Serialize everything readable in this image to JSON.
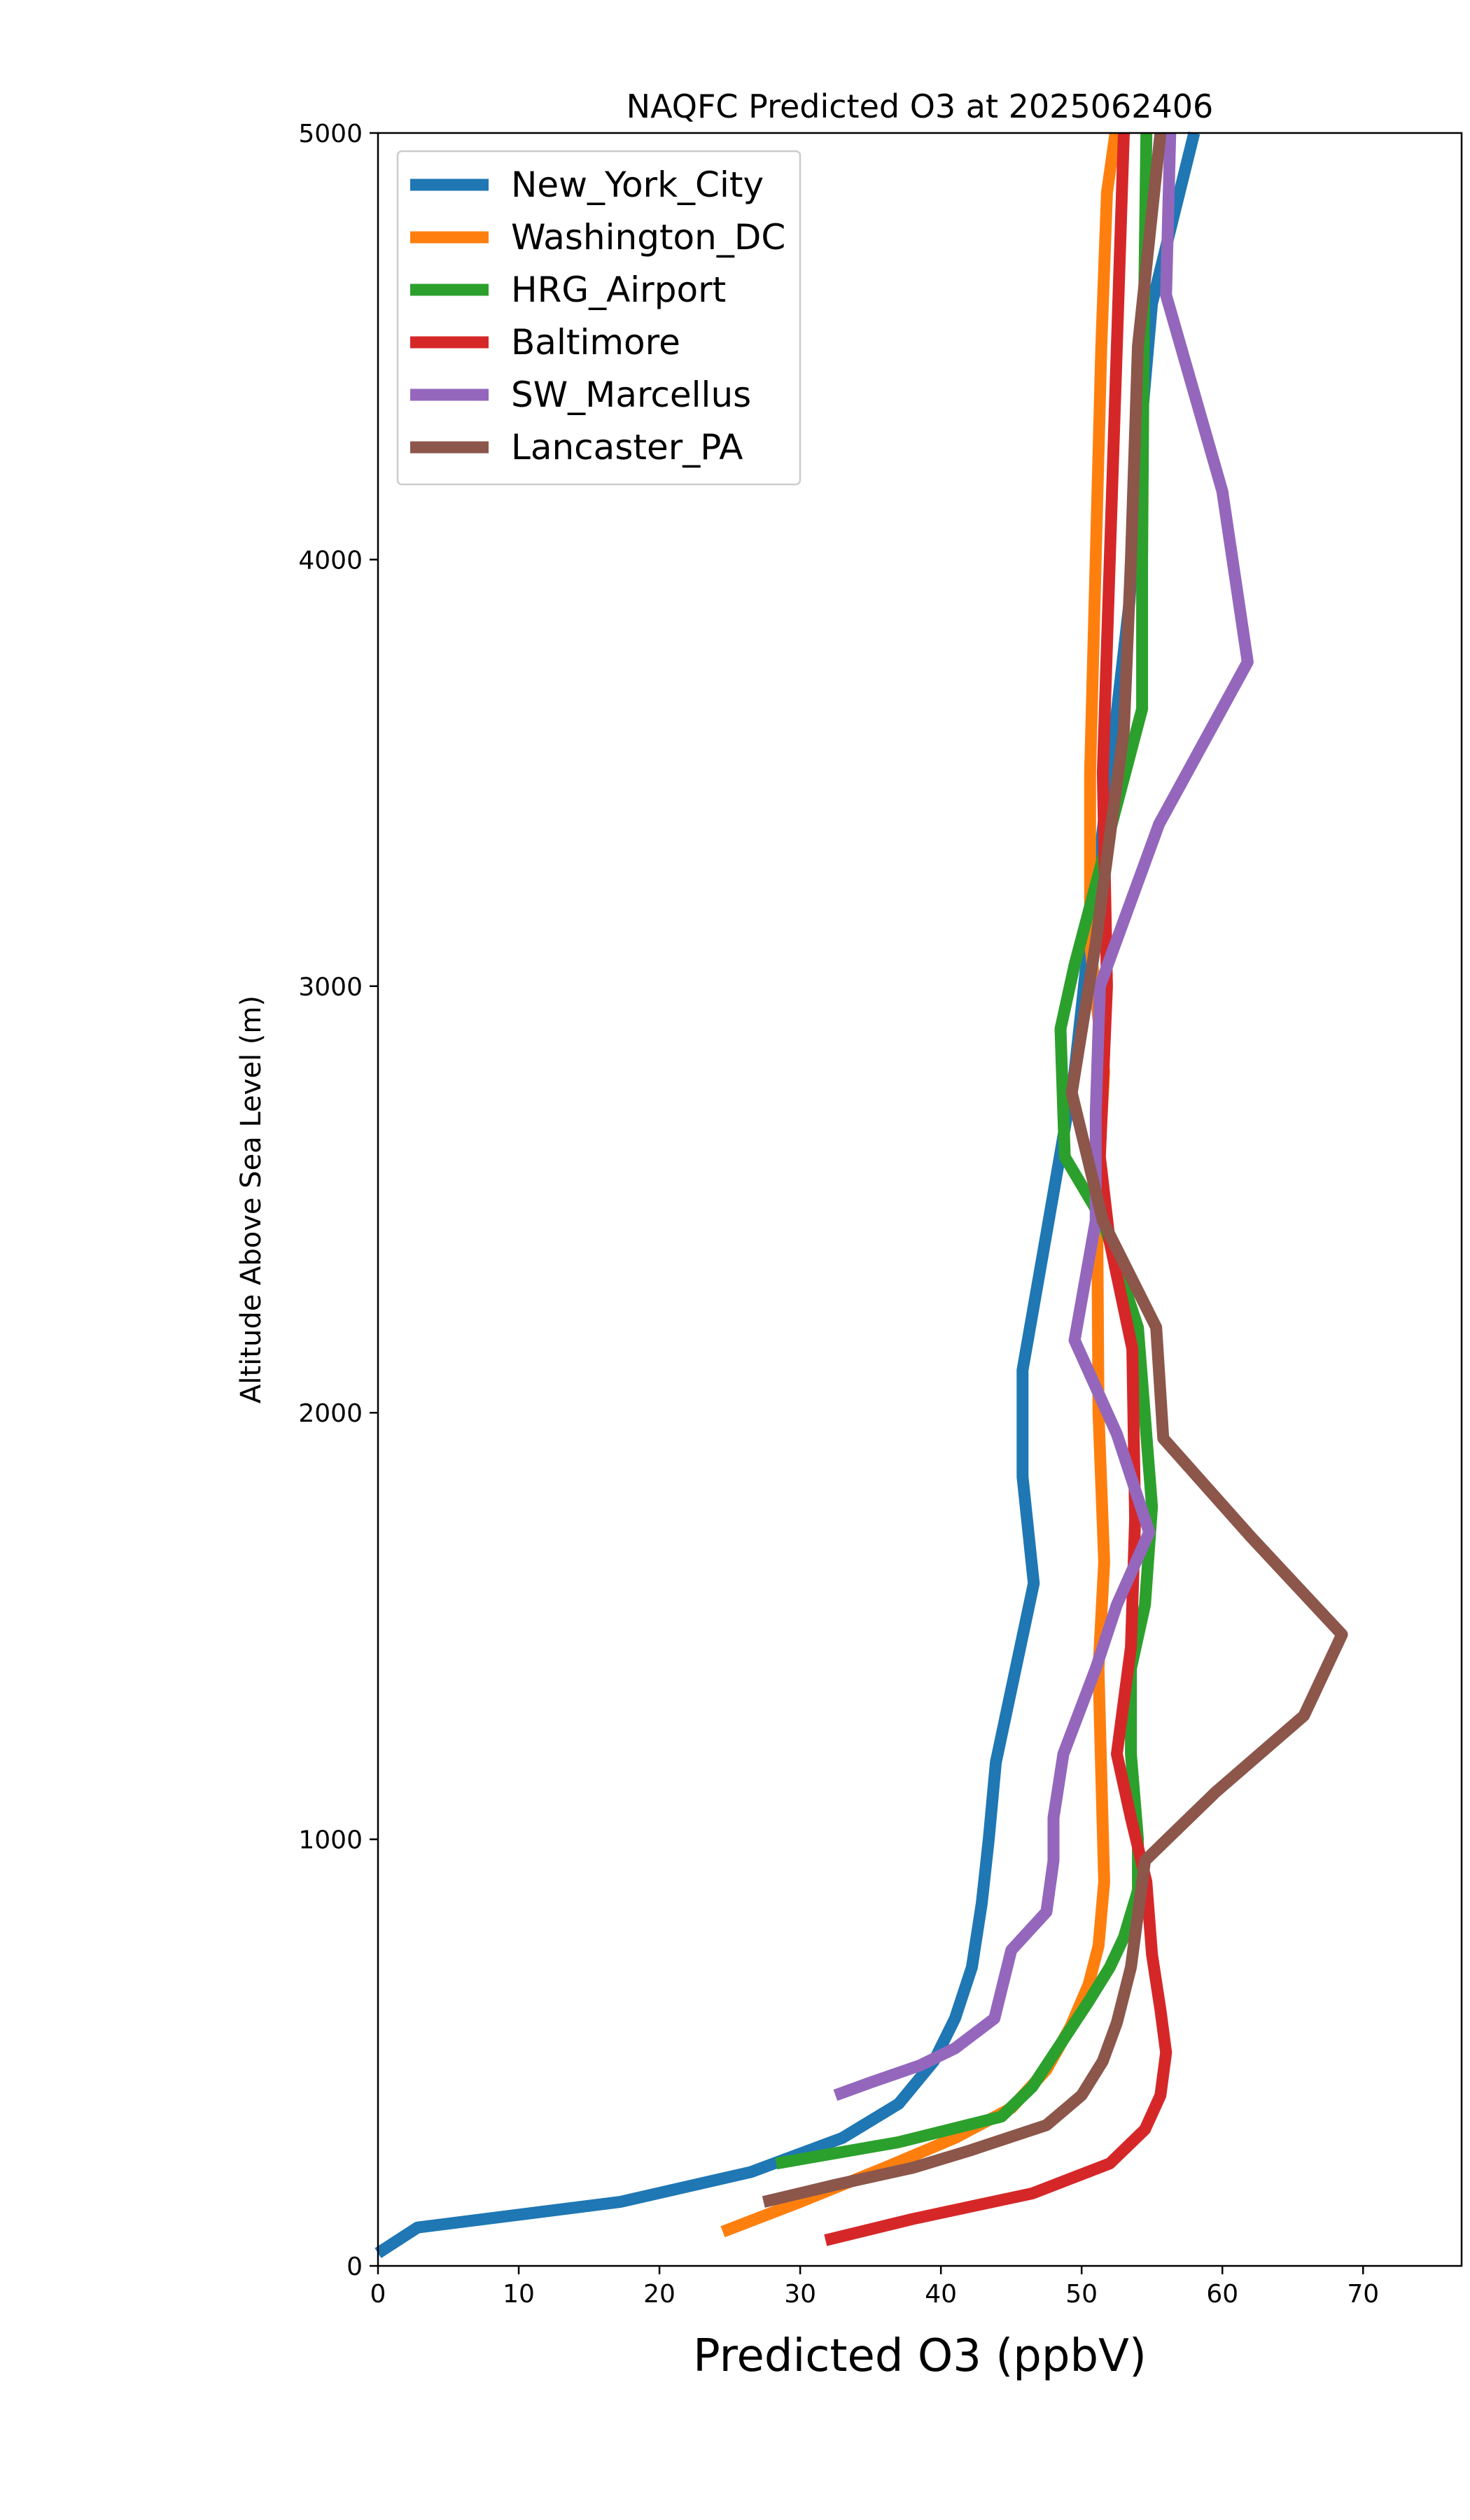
{
  "chart_data": {
    "type": "line",
    "title": "NAQFC Predicted O3 at 2025062406",
    "xlabel": "Predicted O3 (ppbV)",
    "ylabel": "Altitude Above Sea Level (m)",
    "xlim": [
      0,
      77
    ],
    "ylim": [
      0,
      5000
    ],
    "xticks": [
      "0",
      "10",
      "20",
      "30",
      "40",
      "50",
      "60",
      "70"
    ],
    "yticks": [
      "0",
      "1000",
      "2000",
      "3000",
      "4000",
      "5000"
    ],
    "grid": false,
    "legend_position": "top-left",
    "series": [
      {
        "name": "New_York_City",
        "color": "#1f77b4",
        "points": [
          [
            0.0,
            30
          ],
          [
            2.8,
            90
          ],
          [
            17.2,
            150
          ],
          [
            26.5,
            220
          ],
          [
            33.0,
            300
          ],
          [
            37.0,
            380
          ],
          [
            39.5,
            480
          ],
          [
            41.0,
            580
          ],
          [
            42.2,
            700
          ],
          [
            42.9,
            850
          ],
          [
            43.4,
            1000
          ],
          [
            43.9,
            1180
          ],
          [
            46.6,
            1600
          ],
          [
            45.8,
            1850
          ],
          [
            45.8,
            2100
          ],
          [
            47.5,
            2420
          ],
          [
            49.5,
            2800
          ],
          [
            50.5,
            3100
          ],
          [
            52.0,
            3500
          ],
          [
            53.4,
            3900
          ],
          [
            54.2,
            4300
          ],
          [
            55.0,
            4600
          ],
          [
            58.0,
            5000
          ]
        ]
      },
      {
        "name": "Washington_DC",
        "color": "#ff7f0e",
        "points": [
          [
            24.5,
            80
          ],
          [
            30.0,
            150
          ],
          [
            36.0,
            230
          ],
          [
            41.0,
            300
          ],
          [
            45.0,
            370
          ],
          [
            47.5,
            460
          ],
          [
            49.2,
            560
          ],
          [
            50.5,
            660
          ],
          [
            51.2,
            750
          ],
          [
            51.6,
            900
          ],
          [
            51.4,
            1150
          ],
          [
            51.2,
            1400
          ],
          [
            51.6,
            1650
          ],
          [
            51.2,
            2000
          ],
          [
            51.1,
            2500
          ],
          [
            51.6,
            2800
          ],
          [
            50.6,
            3100
          ],
          [
            50.6,
            3500
          ],
          [
            51.0,
            4000
          ],
          [
            51.4,
            4500
          ],
          [
            51.8,
            4860
          ],
          [
            52.4,
            5000
          ]
        ]
      },
      {
        "name": "HRG_Airport",
        "color": "#2ca02c",
        "points": [
          [
            28.3,
            240
          ],
          [
            37.0,
            290
          ],
          [
            44.3,
            350
          ],
          [
            46.5,
            420
          ],
          [
            48.5,
            520
          ],
          [
            50.5,
            620
          ],
          [
            52.0,
            700
          ],
          [
            53.0,
            770
          ],
          [
            54.0,
            880
          ],
          [
            54.0,
            1000
          ],
          [
            53.5,
            1200
          ],
          [
            53.5,
            1400
          ],
          [
            54.5,
            1550
          ],
          [
            55.0,
            1780
          ],
          [
            54.0,
            2200
          ],
          [
            51.5,
            2450
          ],
          [
            48.8,
            2600
          ],
          [
            48.5,
            2900
          ],
          [
            49.5,
            3050
          ],
          [
            51.5,
            3300
          ],
          [
            54.3,
            3650
          ],
          [
            54.3,
            4000
          ],
          [
            54.4,
            4500
          ],
          [
            54.6,
            5000
          ]
        ]
      },
      {
        "name": "Baltimore",
        "color": "#d62728",
        "points": [
          [
            31.8,
            60
          ],
          [
            38.0,
            110
          ],
          [
            46.5,
            170
          ],
          [
            52.0,
            240
          ],
          [
            54.5,
            320
          ],
          [
            55.6,
            400
          ],
          [
            56.0,
            500
          ],
          [
            55.6,
            600
          ],
          [
            55.0,
            730
          ],
          [
            54.6,
            900
          ],
          [
            53.5,
            1050
          ],
          [
            52.5,
            1200
          ],
          [
            53.5,
            1450
          ],
          [
            53.8,
            1750
          ],
          [
            53.6,
            2150
          ],
          [
            52.0,
            2400
          ],
          [
            51.3,
            2600
          ],
          [
            51.8,
            3000
          ],
          [
            51.5,
            3500
          ],
          [
            52.0,
            4000
          ],
          [
            52.5,
            4500
          ],
          [
            53.0,
            5000
          ]
        ]
      },
      {
        "name": "SW_Marcellus",
        "color": "#9467bd",
        "points": [
          [
            32.5,
            400
          ],
          [
            35.0,
            430
          ],
          [
            38.5,
            470
          ],
          [
            41.0,
            510
          ],
          [
            43.8,
            580
          ],
          [
            45.0,
            740
          ],
          [
            47.5,
            830
          ],
          [
            48.0,
            950
          ],
          [
            48.0,
            1050
          ],
          [
            48.7,
            1200
          ],
          [
            51.0,
            1400
          ],
          [
            52.5,
            1550
          ],
          [
            54.8,
            1720
          ],
          [
            52.5,
            1950
          ],
          [
            49.5,
            2170
          ],
          [
            51.0,
            2450
          ],
          [
            51.0,
            2700
          ],
          [
            51.3,
            3000
          ],
          [
            55.5,
            3380
          ],
          [
            61.8,
            3760
          ],
          [
            60.0,
            4160
          ],
          [
            56.0,
            4620
          ],
          [
            56.3,
            5000
          ]
        ]
      },
      {
        "name": "Lancaster_PA",
        "color": "#8c564b",
        "points": [
          [
            27.4,
            150
          ],
          [
            32.5,
            190
          ],
          [
            38.0,
            230
          ],
          [
            42.0,
            270
          ],
          [
            47.5,
            330
          ],
          [
            50.0,
            400
          ],
          [
            51.5,
            480
          ],
          [
            52.5,
            570
          ],
          [
            53.5,
            700
          ],
          [
            54.5,
            950
          ],
          [
            59.5,
            1110
          ],
          [
            65.8,
            1290
          ],
          [
            68.5,
            1480
          ],
          [
            62.0,
            1710
          ],
          [
            55.8,
            1940
          ],
          [
            55.3,
            2200
          ],
          [
            51.5,
            2450
          ],
          [
            49.3,
            2750
          ],
          [
            51.0,
            3100
          ],
          [
            53.0,
            3600
          ],
          [
            53.5,
            4000
          ],
          [
            54.0,
            4500
          ],
          [
            55.6,
            5000
          ]
        ]
      }
    ]
  }
}
